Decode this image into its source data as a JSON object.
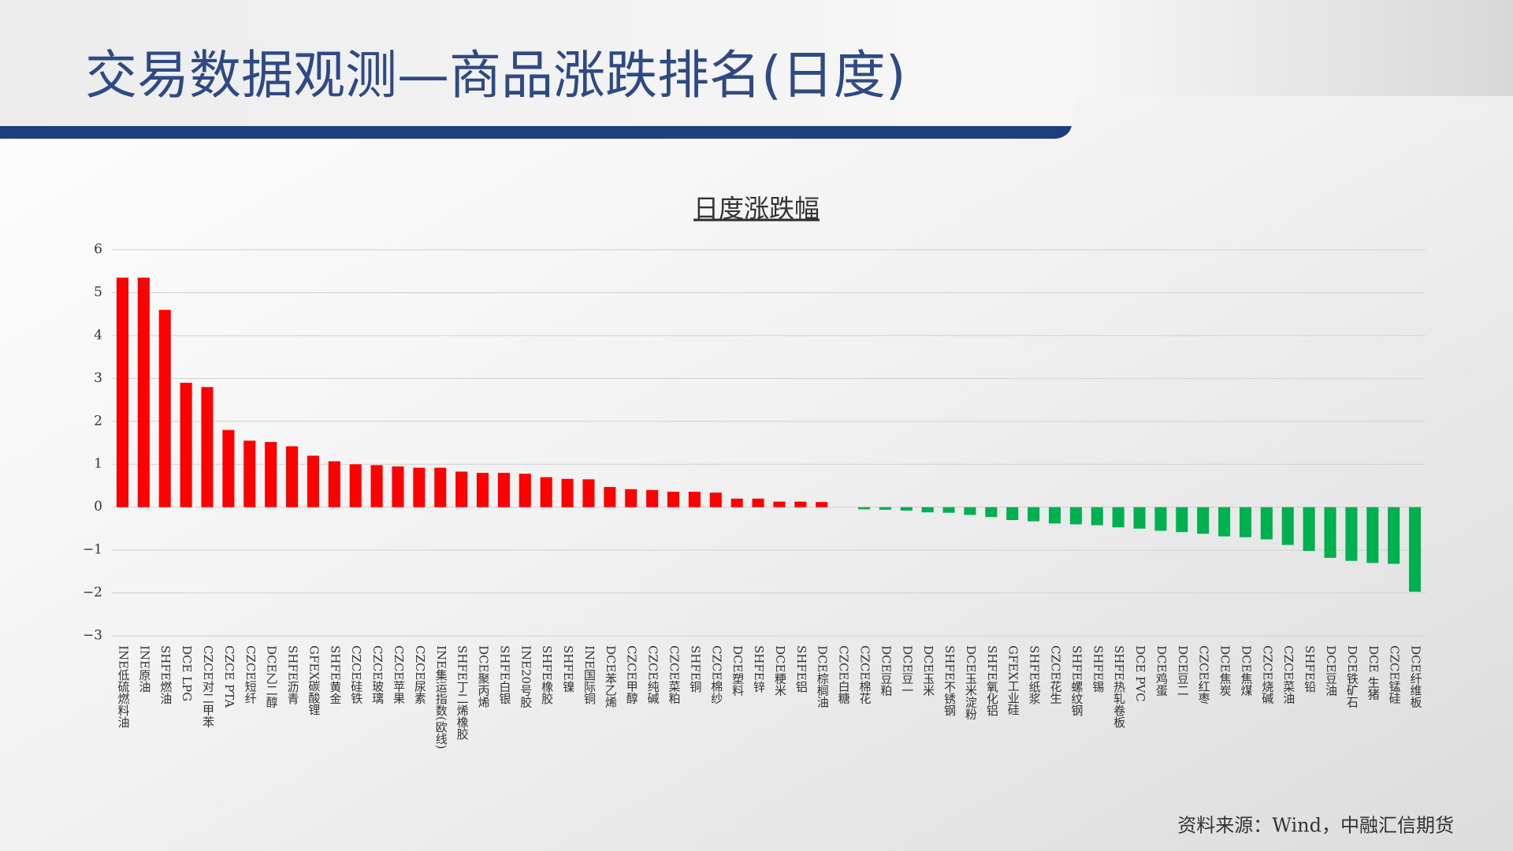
{
  "header": {
    "title": "交易数据观测—商品涨跌排名(日度)"
  },
  "chart_data": {
    "type": "bar",
    "title": "日度涨跌幅",
    "categories": [
      "INE低硫燃料油",
      "INE原油",
      "SHFE燃油",
      "DCE LPG",
      "CZCE对二甲苯",
      "CZCE PTA",
      "CZCE短纤",
      "DCE乙二醇",
      "SHFE沥青",
      "GFEX碳酸锂",
      "SHFE黄金",
      "CZCE硅铁",
      "CZCE玻璃",
      "CZCE苹果",
      "CZCE尿素",
      "INE集运指数(欧线)",
      "SHFE丁二烯橡胶",
      "DCE聚丙烯",
      "SHFE白银",
      "INE20号胶",
      "SHFE橡胶",
      "SHFE镍",
      "INE国际铜",
      "DCE苯乙烯",
      "CZCE甲醇",
      "CZCE纯碱",
      "CZCE菜粕",
      "SHFE铜",
      "CZCE棉纱",
      "DCE塑料",
      "SHFE锌",
      "DCE粳米",
      "SHFE铝",
      "DCE棕榈油",
      "CZCE白糖",
      "CZCE棉花",
      "DCE豆粕",
      "DCE豆一",
      "DCE玉米",
      "SHFE不锈钢",
      "DCE玉米淀粉",
      "SHFE氧化铝",
      "GFEX工业硅",
      "SHFE纸浆",
      "CZCE花生",
      "SHFE螺纹钢",
      "SHFE锡",
      "SHFE热轧卷板",
      "DCE PVC",
      "DCE鸡蛋",
      "DCE豆二",
      "CZCE红枣",
      "DCE焦炭",
      "DCE焦煤",
      "CZCE烧碱",
      "CZCE菜油",
      "SHFE铅",
      "DCE豆油",
      "DCE铁矿石",
      "DCE 生猪",
      "CZCE锰硅",
      "DCE纤维板"
    ],
    "values": [
      5.35,
      5.35,
      4.6,
      2.9,
      2.8,
      1.8,
      1.55,
      1.52,
      1.42,
      1.2,
      1.07,
      1.0,
      0.98,
      0.95,
      0.92,
      0.92,
      0.83,
      0.8,
      0.8,
      0.78,
      0.7,
      0.66,
      0.65,
      0.47,
      0.42,
      0.4,
      0.36,
      0.36,
      0.34,
      0.2,
      0.2,
      0.13,
      0.13,
      0.12,
      0,
      -0.05,
      -0.06,
      -0.08,
      -0.12,
      -0.13,
      -0.18,
      -0.23,
      -0.3,
      -0.33,
      -0.38,
      -0.4,
      -0.42,
      -0.47,
      -0.5,
      -0.55,
      -0.58,
      -0.62,
      -0.68,
      -0.7,
      -0.75,
      -0.88,
      -1.02,
      -1.18,
      -1.25,
      -1.3,
      -1.32,
      -1.97
    ],
    "colors": {
      "positive": "#ff0000",
      "negative": "#00b050"
    },
    "ylim": [
      -3,
      6
    ],
    "yticks": [
      {
        "value": -3,
        "label": "−3"
      },
      {
        "value": -2,
        "label": "−2"
      },
      {
        "value": -1,
        "label": "−1"
      },
      0,
      1,
      2,
      3,
      4,
      5,
      6
    ],
    "grid": true
  },
  "source": "资料来源：Wind，中融汇信期货"
}
